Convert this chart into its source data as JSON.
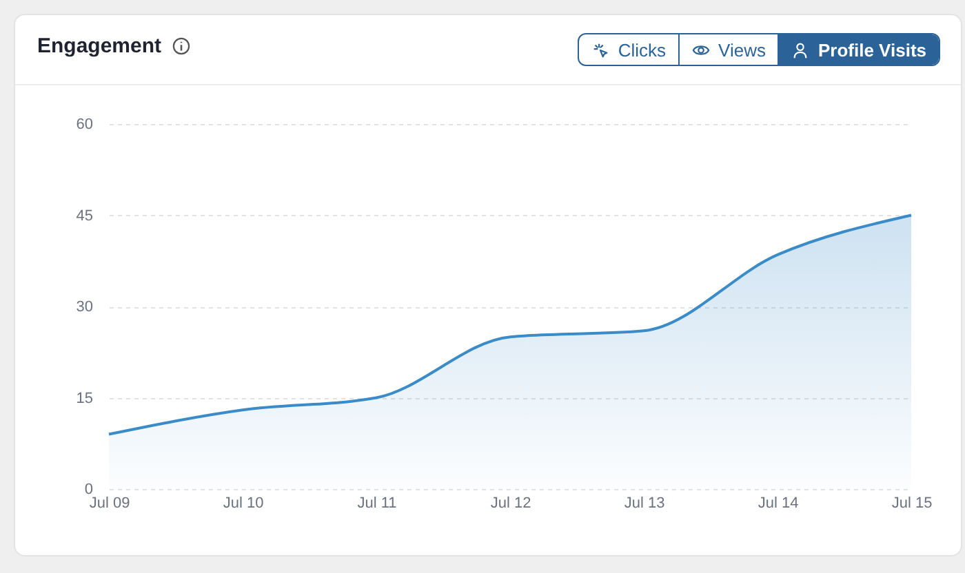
{
  "chart_data": {
    "type": "area",
    "title": "Engagement",
    "annotations": [
      "Clicks",
      "Views",
      "Profile Visits"
    ],
    "categories": [
      "Jul 09",
      "Jul 10",
      "Jul 11",
      "Jul 12",
      "Jul 13",
      "Jul 14",
      "Jul 15"
    ],
    "series": [
      {
        "color": "#3a8bc8",
        "values": [
          9,
          13,
          15,
          25,
          26,
          38.5,
          45
        ]
      }
    ],
    "ylim": [
      0,
      60
    ],
    "yticks": [
      0,
      15,
      30,
      45,
      60
    ],
    "grid": "y",
    "line_style": "solid"
  }
}
